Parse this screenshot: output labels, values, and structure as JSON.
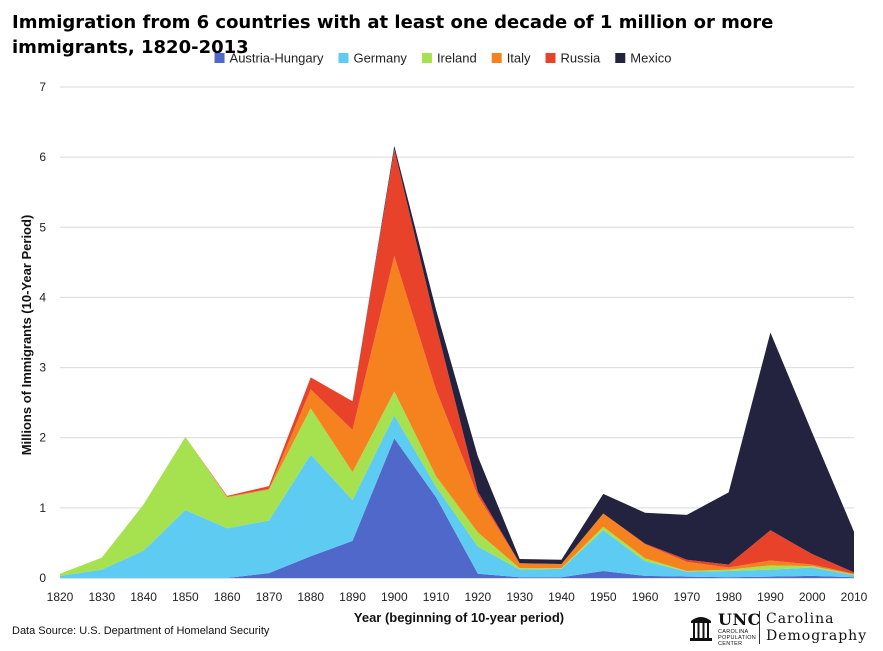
{
  "title": "Immigration from 6 countries with at least one decade of 1 million or more immigrants, 1820-2013",
  "source": "Data Source: U.S. Department of Homeland Security",
  "logo": {
    "unc": "UNC",
    "center_lines": [
      "CAROLINA",
      "POPULATION",
      "CENTER"
    ],
    "brand_line1": "Carolina",
    "brand_line2": "Demography"
  },
  "chart_data": {
    "type": "area",
    "stacked": true,
    "title": "Immigration from 6 countries with at least one decade of 1 million or more immigrants, 1820-2013",
    "xlabel": "Year (beginning of 10-year period)",
    "ylabel": "Millions of Immigrants (10-Year Period)",
    "x": [
      1820,
      1830,
      1840,
      1850,
      1860,
      1870,
      1880,
      1890,
      1900,
      1910,
      1920,
      1930,
      1940,
      1950,
      1960,
      1970,
      1980,
      1990,
      2000,
      2010
    ],
    "xlim": [
      1820,
      2010
    ],
    "ylim": [
      0,
      7
    ],
    "yticks": [
      0,
      1,
      2,
      3,
      4,
      5,
      6,
      7
    ],
    "grid": true,
    "legend_position": "top",
    "series": [
      {
        "name": "Austria-Hungary",
        "color": "#4f68c9",
        "values": [
          0,
          0,
          0,
          0,
          0,
          0.07,
          0.31,
          0.53,
          1.99,
          1.15,
          0.06,
          0.01,
          0.01,
          0.1,
          0.03,
          0.02,
          0.01,
          0.02,
          0.03,
          0.01
        ]
      },
      {
        "name": "Germany",
        "color": "#5ecbf2",
        "values": [
          0.03,
          0.12,
          0.39,
          0.97,
          0.71,
          0.75,
          1.45,
          0.58,
          0.33,
          0.15,
          0.39,
          0.11,
          0.12,
          0.58,
          0.21,
          0.07,
          0.09,
          0.1,
          0.12,
          0.03
        ]
      },
      {
        "name": "Ireland",
        "color": "#a6e250",
        "values": [
          0.03,
          0.17,
          0.66,
          1.04,
          0.44,
          0.44,
          0.66,
          0.4,
          0.34,
          0.15,
          0.2,
          0.02,
          0.01,
          0.05,
          0.04,
          0.01,
          0.02,
          0.06,
          0.02,
          0.01
        ]
      },
      {
        "name": "Italy",
        "color": "#f5821f",
        "values": [
          0,
          0,
          0,
          0,
          0.01,
          0.01,
          0.27,
          0.6,
          1.93,
          1.23,
          0.52,
          0.07,
          0.06,
          0.19,
          0.2,
          0.13,
          0.03,
          0.07,
          0.02,
          0.01
        ]
      },
      {
        "name": "Russia",
        "color": "#e8432a",
        "values": [
          0,
          0,
          0,
          0,
          0.01,
          0.04,
          0.17,
          0.41,
          1.52,
          0.92,
          0.06,
          0,
          0,
          0,
          0.01,
          0.03,
          0.04,
          0.43,
          0.15,
          0.02
        ]
      },
      {
        "name": "Mexico",
        "color": "#23233f",
        "values": [
          0,
          0,
          0,
          0,
          0,
          0,
          0,
          0,
          0.05,
          0.22,
          0.5,
          0.06,
          0.06,
          0.28,
          0.44,
          0.64,
          1.03,
          2.82,
          1.73,
          0.58
        ]
      }
    ]
  }
}
